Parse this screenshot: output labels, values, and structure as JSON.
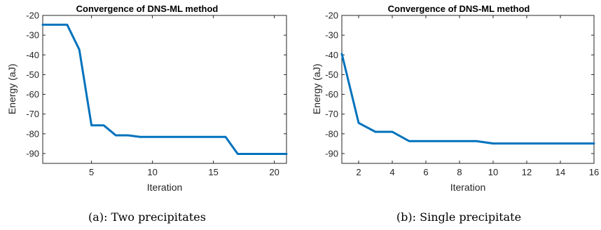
{
  "chart_data": [
    {
      "type": "line",
      "title": "Convergence of DNS-ML method",
      "xlabel": "Iteration",
      "ylabel": "Energy (aJ)",
      "xlim": [
        1,
        21
      ],
      "ylim": [
        -95,
        -20
      ],
      "xticks": [
        5,
        10,
        15,
        20
      ],
      "yticks": [
        -20,
        -30,
        -40,
        -50,
        -60,
        -70,
        -80,
        -90
      ],
      "grid": false,
      "series": [
        {
          "x": [
            1,
            2,
            3,
            4,
            5,
            6,
            7,
            8,
            9,
            10,
            11,
            12,
            13,
            14,
            15,
            16,
            17,
            18,
            19,
            20,
            21
          ],
          "values": [
            -24.7,
            -24.7,
            -24.7,
            -37.3,
            -75.7,
            -75.7,
            -80.8,
            -80.8,
            -81.6,
            -81.6,
            -81.6,
            -81.6,
            -81.6,
            -81.6,
            -81.6,
            -81.6,
            -90.2,
            -90.2,
            -90.2,
            -90.2,
            -90.2
          ],
          "color": "#0072BD"
        }
      ],
      "caption": "(a):  Two precipitates"
    },
    {
      "type": "line",
      "title": "Convergence of DNS-ML method",
      "xlabel": "Iteration",
      "ylabel": "Energy (aJ)",
      "xlim": [
        1,
        16
      ],
      "ylim": [
        -95,
        -20
      ],
      "xticks": [
        2,
        4,
        6,
        8,
        10,
        12,
        14,
        16
      ],
      "yticks": [
        -20,
        -30,
        -40,
        -50,
        -60,
        -70,
        -80,
        -90
      ],
      "grid": false,
      "series": [
        {
          "x": [
            1,
            2,
            3,
            4,
            5,
            6,
            7,
            8,
            9,
            10,
            11,
            12,
            13,
            14,
            15,
            16
          ],
          "values": [
            -39.5,
            -74.5,
            -79.0,
            -79.0,
            -83.7,
            -83.7,
            -83.7,
            -83.7,
            -83.7,
            -84.9,
            -84.9,
            -84.9,
            -84.9,
            -84.9,
            -84.9,
            -84.9
          ],
          "color": "#0072BD"
        }
      ],
      "caption": "(b):  Single precipitate"
    }
  ]
}
